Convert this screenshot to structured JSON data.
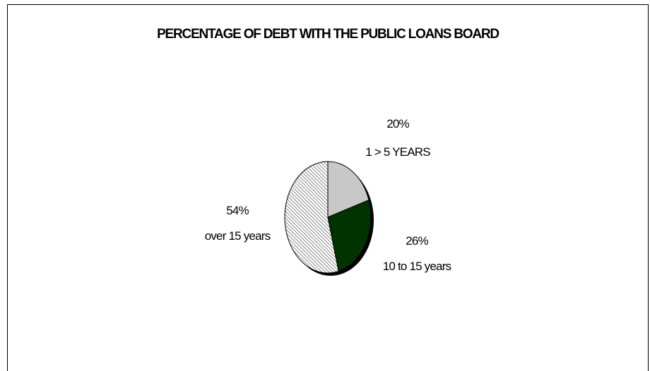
{
  "chart_data": {
    "type": "pie",
    "title": "PERCENTAGE OF DEBT WITH THE PUBLIC LOANS BOARD",
    "slices": [
      {
        "label": "1 > 5 YEARS",
        "value": 20,
        "value_label": "20%",
        "color": "#c8c8c8",
        "pattern": "solid"
      },
      {
        "label": "10 to 15 years",
        "value": 26,
        "value_label": "26%",
        "color": "#003300",
        "pattern": "solid"
      },
      {
        "label": "over 15 years",
        "value": 54,
        "value_label": "54%",
        "color": "#8a8a8a",
        "pattern": "diagonal-hatch"
      }
    ],
    "legend": "none",
    "style": "3d-tilted"
  }
}
